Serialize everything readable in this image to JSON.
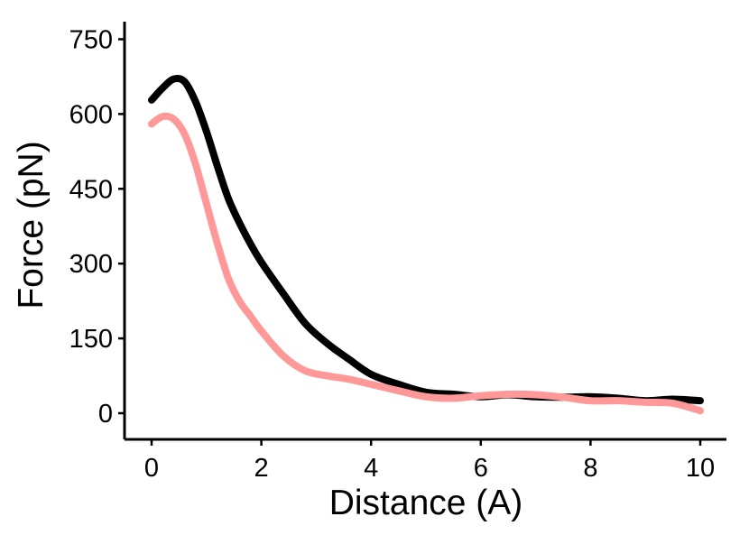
{
  "chart_data": {
    "type": "line",
    "title": "",
    "xlabel": "Distance (A)",
    "ylabel": "Force (pN)",
    "xlim": [
      -0.5,
      10.5
    ],
    "ylim": [
      -55,
      790
    ],
    "x_ticks": [
      0,
      2,
      4,
      6,
      8,
      10
    ],
    "x_tick_labels": [
      "0",
      "2",
      "4",
      "6",
      "8",
      "10"
    ],
    "y_ticks": [
      0,
      150,
      300,
      450,
      600,
      750
    ],
    "y_tick_labels": [
      "0",
      "150",
      "300",
      "450",
      "600",
      "750"
    ],
    "grid": false,
    "legend": "none",
    "series": [
      {
        "color": "#000000",
        "x": [
          0,
          0.2,
          0.4,
          0.6,
          0.8,
          1.0,
          1.2,
          1.4,
          1.6,
          1.8,
          2.0,
          2.4,
          2.8,
          3.2,
          3.6,
          4.0,
          4.5,
          5.0,
          5.5,
          6.0,
          6.5,
          7.0,
          7.5,
          8.0,
          8.5,
          9.0,
          9.5,
          10.0
        ],
        "y": [
          628,
          652,
          670,
          665,
          625,
          565,
          495,
          430,
          382,
          340,
          303,
          240,
          180,
          140,
          108,
          78,
          58,
          42,
          38,
          33,
          37,
          33,
          32,
          33,
          30,
          25,
          28,
          25
        ]
      },
      {
        "color": "#FF9999",
        "x": [
          0,
          0.2,
          0.4,
          0.6,
          0.8,
          1.0,
          1.2,
          1.4,
          1.6,
          1.8,
          2.0,
          2.4,
          2.8,
          3.2,
          3.6,
          4.0,
          4.5,
          5.0,
          5.5,
          6.0,
          6.5,
          7.0,
          7.5,
          8.0,
          8.5,
          9.0,
          9.5,
          10.0
        ],
        "y": [
          580,
          595,
          590,
          560,
          500,
          420,
          340,
          270,
          225,
          195,
          165,
          115,
          85,
          75,
          68,
          58,
          45,
          33,
          30,
          35,
          38,
          37,
          32,
          25,
          25,
          22,
          20,
          5
        ]
      }
    ]
  }
}
